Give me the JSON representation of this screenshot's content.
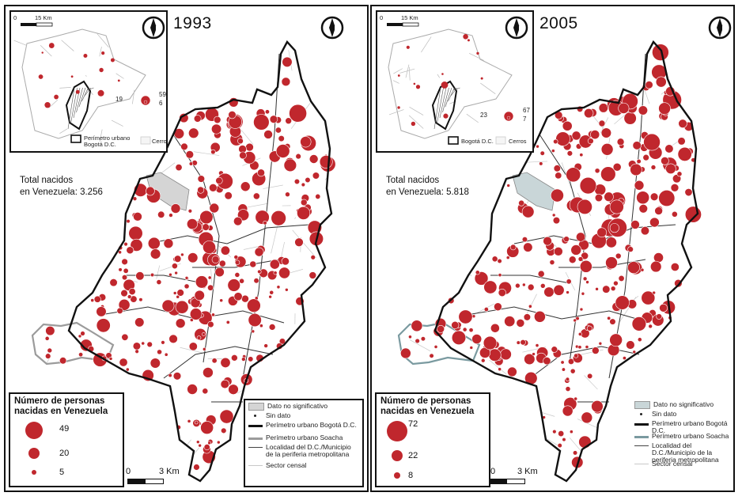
{
  "panels": [
    {
      "year": "1993",
      "total_line1": "Total nacidos",
      "total_line2": "en Venezuela: 3.256",
      "legend_title": "Número de personas nacidas en Venezuela",
      "legend_values": [
        "49",
        "20",
        "5"
      ],
      "inset_scale": [
        "0",
        "15 Km"
      ],
      "inset_numbers": [
        "19",
        "59",
        "6"
      ],
      "inset_legend_perimeter": "Perímetro urbano Bogotá D.C.",
      "inset_legend_cerros": "Cerros",
      "map_scale": [
        "0",
        "3 Km"
      ],
      "seed": 11,
      "density": 0.62
    },
    {
      "year": "2005",
      "total_line1": "Total nacidos",
      "total_line2": "en Venezuela: 5.818",
      "legend_title": "Número de personas nacidas en Venezuela",
      "legend_values": [
        "72",
        "22",
        "8"
      ],
      "inset_scale": [
        "0",
        "15 Km"
      ],
      "inset_numbers": [
        "23",
        "67",
        "7"
      ],
      "inset_legend_perimeter": "Bogotá D.C.",
      "inset_legend_cerros": "Cerros",
      "map_scale": [
        "0",
        "3 Km"
      ],
      "seed": 29,
      "density": 0.85
    }
  ],
  "map_legend": {
    "no_significant": "Dato no significativo",
    "no_data": "Sin dato",
    "bogota_perimeter": "Perímetro urbano Bogotá D.C.",
    "soacha_perimeter": "Perímetro urbano Soacha",
    "localidad": "Localidad del D.C./Municipio de la periferia metropolitana",
    "sector": "Sector censal"
  },
  "colors": {
    "circle": "#c0272d",
    "circle_stroke": "#ffffff",
    "boundary": "#111111",
    "soacha_1993": "#9b9b9b",
    "soacha_2005": "#7a9aa0",
    "no_significant_1993": "#d5d5d5",
    "no_significant_2005": "#c9d6d8",
    "sector": "#c8c8c8"
  },
  "icons": [
    "north-arrow-icon"
  ]
}
